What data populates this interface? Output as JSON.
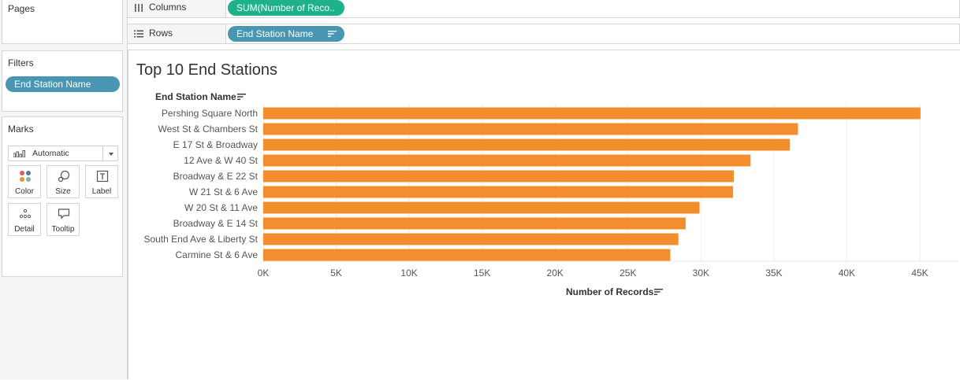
{
  "left_panel": {
    "pages": {
      "title": "Pages"
    },
    "filters": {
      "title": "Filters",
      "pill": "End Station Name"
    },
    "marks": {
      "title": "Marks",
      "mark_type": "Automatic",
      "buttons": {
        "color": {
          "label": "Color",
          "icon": "color-dots-icon"
        },
        "size": {
          "label": "Size",
          "icon": "size-icon"
        },
        "label": {
          "label": "Label",
          "icon": "text-label-icon"
        },
        "detail": {
          "label": "Detail",
          "icon": "detail-dots-icon"
        },
        "tooltip": {
          "label": "Tooltip",
          "icon": "tooltip-icon"
        }
      }
    }
  },
  "shelves": {
    "columns": {
      "label": "Columns",
      "pill": "SUM(Number of Reco..",
      "pill_color": "#1fb18a"
    },
    "rows": {
      "label": "Rows",
      "pill": "End Station Name",
      "pill_color": "#4996b2"
    }
  },
  "view": {
    "title": "Top 10 End Stations",
    "row_header": "End Station Name",
    "x_title": "Number of Records"
  },
  "chart_data": {
    "type": "bar",
    "orientation": "horizontal",
    "title": "Top 10 End Stations",
    "ylabel": "End Station Name",
    "xlabel": "Number of Records",
    "categories": [
      "Pershing Square North",
      "West St & Chambers St",
      "E 17 St & Broadway",
      "12 Ave & W 40 St",
      "Broadway & E 22 St",
      "W 21 St & 6 Ave",
      "W 20 St & 11 Ave",
      "Broadway & E 14 St",
      "South End Ave & Liberty St",
      "Carmine St & 6 Ave"
    ],
    "values": [
      45050,
      36650,
      36100,
      33400,
      32250,
      32200,
      29900,
      28950,
      28450,
      27900
    ],
    "xlim": [
      0,
      47500
    ],
    "ticks": [
      0,
      5000,
      10000,
      15000,
      20000,
      25000,
      30000,
      35000,
      40000,
      45000
    ],
    "tick_labels": [
      "0K",
      "5K",
      "10K",
      "15K",
      "20K",
      "25K",
      "30K",
      "35K",
      "40K",
      "45K"
    ],
    "bar_color": "#f28e2b",
    "grid": "vertical"
  }
}
